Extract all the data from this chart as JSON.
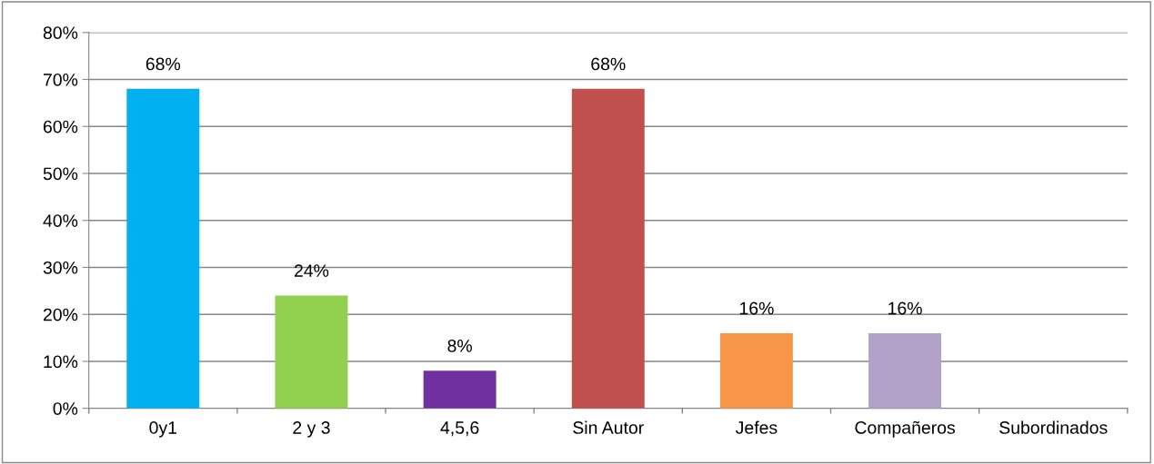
{
  "chart_data": {
    "type": "bar",
    "categories": [
      "0y1",
      "2 y 3",
      "4,5,6",
      "Sin Autor",
      "Jefes",
      "Compañeros",
      "Subordinados"
    ],
    "values": [
      68,
      24,
      8,
      68,
      16,
      16,
      0
    ],
    "colors": [
      "#00b0f0",
      "#92d050",
      "#7030a0",
      "#c0504d",
      "#f79646",
      "#b3a2c7",
      "#4bacc6"
    ],
    "value_labels": [
      "68%",
      "24%",
      "8%",
      "68%",
      "16%",
      "16%",
      null
    ],
    "ylim": [
      0,
      80
    ],
    "yticks": [
      {
        "value": 0,
        "label": "0%"
      },
      {
        "value": 10,
        "label": "10%"
      },
      {
        "value": 20,
        "label": "20%"
      },
      {
        "value": 30,
        "label": "30%"
      },
      {
        "value": 40,
        "label": "40%"
      },
      {
        "value": 50,
        "label": "50%"
      },
      {
        "value": 60,
        "label": "60%"
      },
      {
        "value": 70,
        "label": "70%"
      },
      {
        "value": 80,
        "label": "80%"
      }
    ],
    "grid": "y"
  }
}
